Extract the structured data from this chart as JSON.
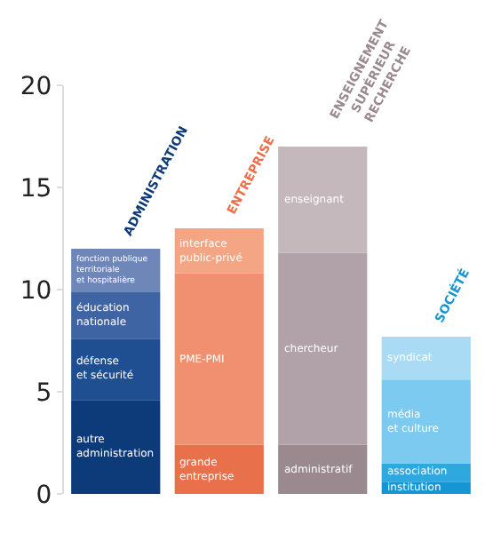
{
  "chart_data": {
    "type": "bar",
    "stacked": true,
    "categories": [
      null,
      null,
      null,
      null
    ],
    "annotations": [
      "ADMINISTRATION",
      "ENTREPRISE",
      "ENSEIGNEMENT\nSUPÉRIEUR\nRECHERCHE",
      "SOCIÉTÉ"
    ],
    "series": [
      {
        "colors": [
          "#0d3a78",
          "#e8704a",
          "#9a8a90",
          "#1596d2"
        ],
        "values": [
          4.6,
          2.4,
          2.4,
          0.6
        ],
        "value_labels": [
          "autre\nadministration",
          "grande\nentreprise",
          "administratif",
          "institution"
        ]
      },
      {
        "colors": [
          "#1f4f90",
          "#f09070",
          "#b0a2a8",
          "#2ea8de"
        ],
        "values": [
          3.0,
          8.4,
          9.4,
          0.9
        ],
        "value_labels": [
          "défense\net sécurité",
          "PME-PMI",
          "chercheur",
          "association"
        ]
      },
      {
        "colors": [
          "#3e64a3",
          "#f4a584",
          "#c4b8bc",
          "#7ccaef"
        ],
        "values": [
          2.3,
          2.2,
          5.2,
          4.1
        ],
        "value_labels": [
          "éducation\nnationale",
          "interface\npublic-privé",
          "enseignant",
          "média\net culture"
        ]
      },
      {
        "colors": [
          "#6e86b8",
          null,
          null,
          "#a9dcf4"
        ],
        "values": [
          2.1,
          null,
          null,
          2.1
        ],
        "value_labels": [
          "fonction publique\nterritoriale\net hospitalière",
          null,
          null,
          "syndicat"
        ]
      }
    ],
    "ylim": [
      0,
      20
    ],
    "yticks": [
      0,
      5,
      10,
      15,
      20
    ],
    "tick_labels": "y"
  }
}
